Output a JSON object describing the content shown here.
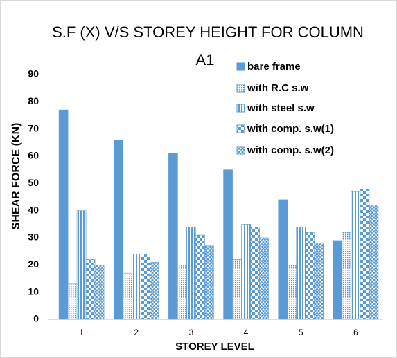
{
  "chart_data": {
    "type": "bar",
    "title": "S.F (X) V/S STOREY HEIGHT FOR COLUMN",
    "subtitle": "A1",
    "x_label": "STOREY LEVEL",
    "y_label": "SHEAR FORCE (KN)",
    "categories": [
      "1",
      "2",
      "3",
      "4",
      "5",
      "6"
    ],
    "series": [
      {
        "name": "bare frame",
        "color": "#5b9bd5",
        "pattern": "solid",
        "values": [
          77,
          66,
          61,
          55,
          44,
          29
        ]
      },
      {
        "name": "with R.C s.w",
        "color": "#5b9bd5",
        "pattern": "dots",
        "values": [
          13,
          17,
          20,
          22,
          20,
          32
        ]
      },
      {
        "name": "with steel s.w",
        "color": "#5b9bd5",
        "pattern": "vertical",
        "values": [
          40,
          24,
          34,
          35,
          34,
          47
        ]
      },
      {
        "name": "with comp. s.w(1)",
        "color": "#5b9bd5",
        "pattern": "checker",
        "values": [
          22,
          24,
          31,
          34,
          32,
          48
        ]
      },
      {
        "name": "with comp. s.w(2)",
        "color": "#5b9bd5",
        "pattern": "cross",
        "values": [
          20,
          21,
          27,
          30,
          28,
          42
        ]
      }
    ],
    "ylim": [
      0,
      90
    ],
    "yticks": [
      0,
      10,
      20,
      30,
      40,
      50,
      60,
      70,
      80,
      90
    ],
    "grid": false
  }
}
